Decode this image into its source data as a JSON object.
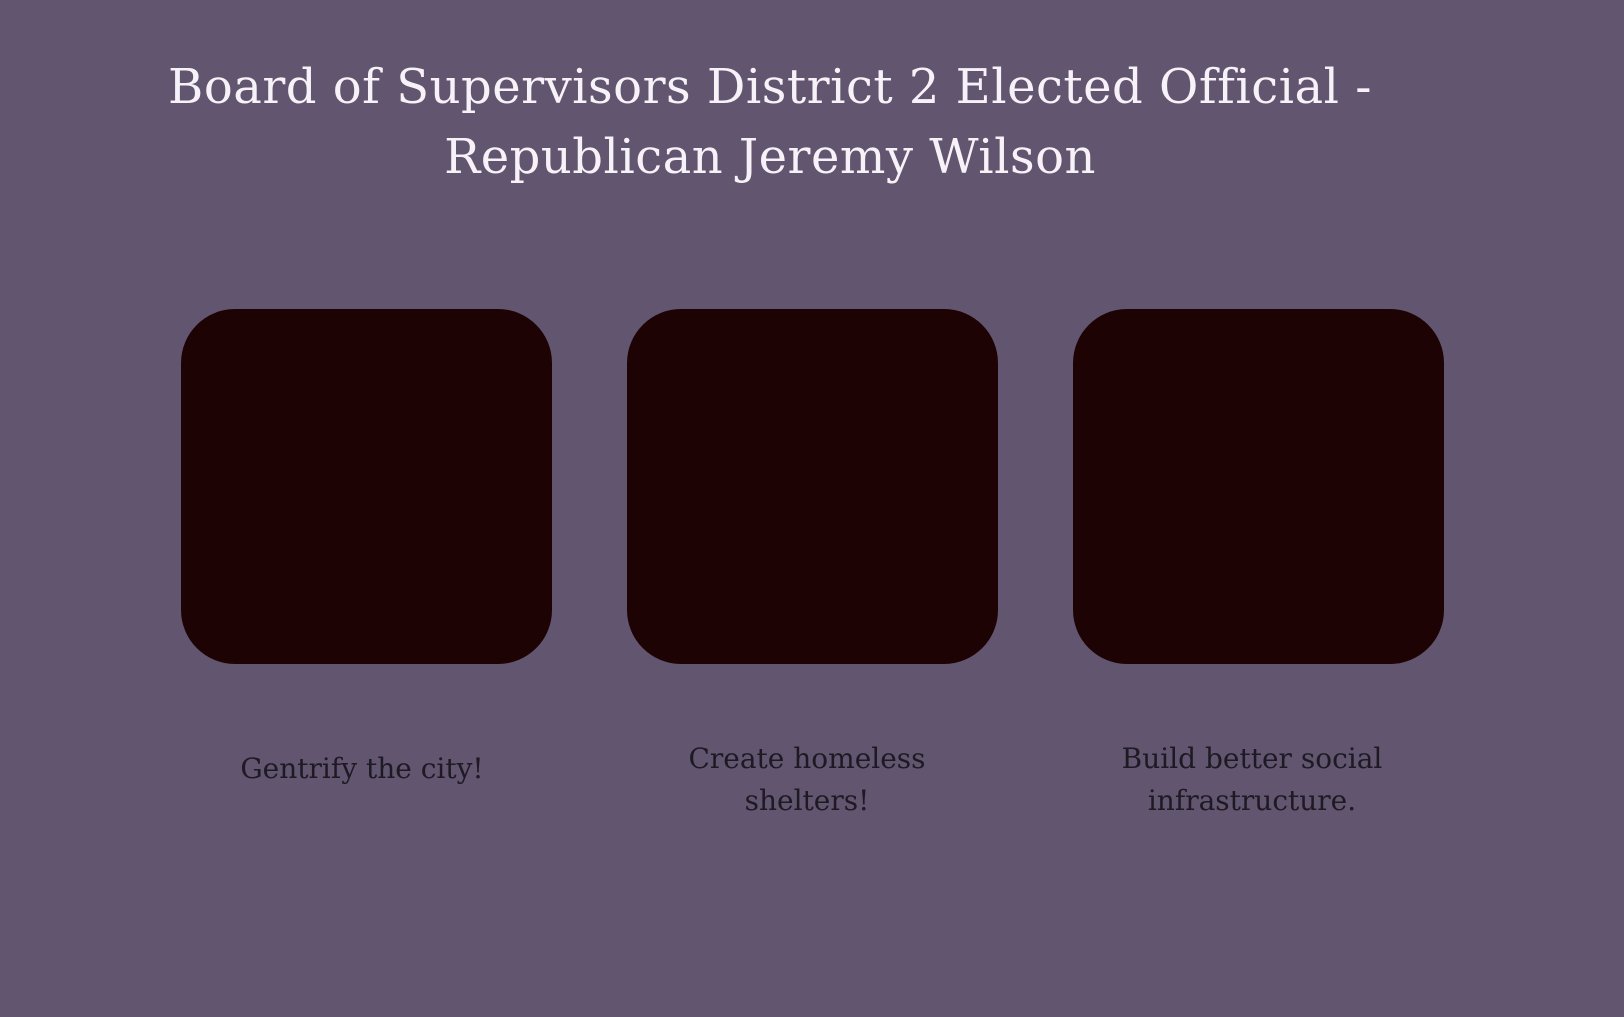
{
  "page": {
    "title_line1": "Board of Supervisors District 2 Elected Official -",
    "title_line2": "Republican Jeremy Wilson",
    "background_color": "#62556f",
    "card_color": "#1d0304"
  },
  "cards": [
    {
      "caption": "Gentrify the city!"
    },
    {
      "caption_line1": "Create homeless",
      "caption_line2": "shelters!"
    },
    {
      "caption_line1": "Build better social",
      "caption_line2": "infrastructure."
    }
  ]
}
